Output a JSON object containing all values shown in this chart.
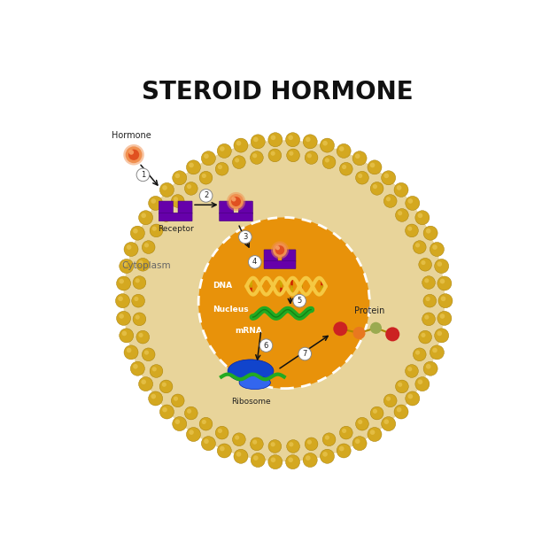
{
  "title": "STEROID HORMONE",
  "title_fontsize": 20,
  "title_fontweight": "bold",
  "bg_color": "#ffffff",
  "cell_inner_color": "#E8D49A",
  "cell_outer_color": "#C89010",
  "membrane_bead_color": "#D4A820",
  "membrane_bead_highlight": "#F0D060",
  "membrane_bead_dark": "#A07800",
  "nucleus_color": "#E8920A",
  "receptor_color": "#6600AA",
  "receptor_shadow": "#440077",
  "hormone_outer": "#F09050",
  "hormone_inner": "#E05020",
  "hormone_highlight": "#FFB878",
  "dna_backbone": "#F5C842",
  "dna_rung": "#CC2200",
  "dna_rung2": "#CCAA00",
  "mrna_color": "#22AA22",
  "ribosome_large": "#1144CC",
  "ribosome_small": "#3366EE",
  "ribosome_rna": "#22AA22",
  "protein_colors": [
    "#CC2222",
    "#E87820",
    "#9AAA50",
    "#CC2222"
  ],
  "protein_connector": "#AA8800",
  "label_color": "#222222",
  "white_label": "#ffffff",
  "step_bg": "#ffffff",
  "step_border": "#888888",
  "arrow_color": "#111111",
  "cytoplasm_label": "#666666",
  "labels": {
    "hormone": "Hormone",
    "receptor": "Receptor",
    "cytoplasm": "Cytoplasm",
    "nucleus": "Nucleus",
    "dna": "DNA",
    "mrna": "mRNA",
    "ribosome": "Ribosome",
    "protein": "Protein"
  },
  "fig_width": 6.12,
  "fig_height": 6.12,
  "dpi": 100
}
